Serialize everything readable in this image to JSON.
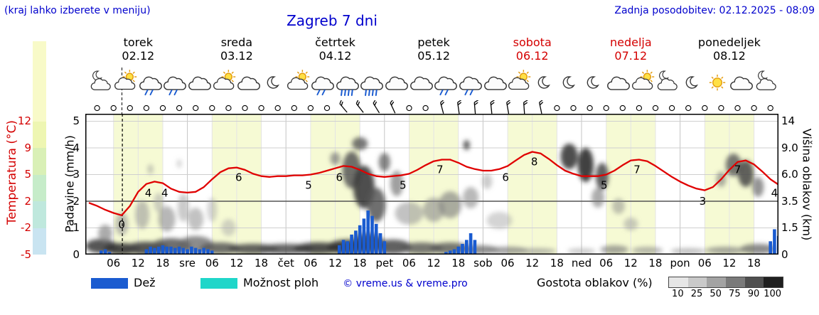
{
  "header": {
    "hint": "(kraj lahko izberete v meniju)",
    "title": "Zagreb 7 dni",
    "updated": "Zadnja posodobitev: 02.12.2025 - 08:09"
  },
  "days": [
    {
      "name": "torek",
      "date": "02.12",
      "weekend": false
    },
    {
      "name": "sreda",
      "date": "03.12",
      "weekend": false
    },
    {
      "name": "četrtek",
      "date": "04.12",
      "weekend": false
    },
    {
      "name": "petek",
      "date": "05.12",
      "weekend": false
    },
    {
      "name": "sobota",
      "date": "06.12",
      "weekend": true
    },
    {
      "name": "nedelja",
      "date": "07.12",
      "weekend": true
    },
    {
      "name": "ponedeljek",
      "date": "08.12",
      "weekend": false
    }
  ],
  "axes": {
    "temp_label": "Temperatura (°C)",
    "temp_ticks": [
      "12",
      "9",
      "5",
      "2",
      "-2",
      "-5"
    ],
    "precip_label": "Padavine (mm/h)",
    "precip_ticks": [
      "5",
      "4",
      "3",
      "2",
      "1",
      "0"
    ],
    "cloud_label": "Višina oblakov (km)",
    "cloud_ticks": [
      "14",
      "9.0",
      "6.0",
      "3.5",
      "1.5",
      "0"
    ],
    "x_ticks": [
      "06",
      "12",
      "18",
      "sre",
      "06",
      "12",
      "18",
      "čet",
      "06",
      "12",
      "18",
      "pet",
      "06",
      "12",
      "18",
      "sob",
      "06",
      "12",
      "18",
      "ned",
      "06",
      "12",
      "18",
      "pon",
      "06",
      "12",
      "18"
    ]
  },
  "legend": {
    "rain": "Dež",
    "showers": "Možnost ploh",
    "copyright": "© vreme.us & vreme.pro",
    "cloud_density": "Gostota oblakov (%)",
    "density_ticks": [
      "10",
      "25",
      "50",
      "75",
      "90",
      "100"
    ]
  },
  "colors": {
    "accent_blue": "#0000cd",
    "red": "#d40000",
    "temp_line": "#e00000",
    "rain": "#1a5bd0",
    "showers": "#1fd6c9",
    "day_band": "#f6fad4",
    "temp_scale": [
      "#f8fac8",
      "#eef6b2",
      "#d9f0b6",
      "#c6ecc9",
      "#bfe8dd",
      "#c9e4f1"
    ],
    "density_scale": [
      "#e6e6e6",
      "#c9c9c9",
      "#a3a3a3",
      "#7a7a7a",
      "#4f4f4f",
      "#1f1f1f"
    ]
  },
  "chart_data": {
    "type": "line",
    "title": "Zagreb 7 dni",
    "x_axis": {
      "unit": "hours from 02.12 00:00",
      "range": [
        0,
        168
      ],
      "tick_step_hours": 6
    },
    "now_hour": 8.15,
    "day_band": {
      "start": 6,
      "end": 18
    },
    "temperature": {
      "label": "Temperatura (°C)",
      "unit": "°C",
      "axis_ticks": [
        12,
        9,
        5,
        2,
        -2,
        -5
      ],
      "points": [
        [
          0,
          1.6
        ],
        [
          2,
          1.2
        ],
        [
          4,
          0.7
        ],
        [
          6,
          0.3
        ],
        [
          8,
          0.0
        ],
        [
          10,
          1.2
        ],
        [
          12,
          3.0
        ],
        [
          14,
          4.0
        ],
        [
          16,
          4.3
        ],
        [
          18,
          4.1
        ],
        [
          20,
          3.4
        ],
        [
          22,
          3.0
        ],
        [
          24,
          2.9
        ],
        [
          26,
          3.0
        ],
        [
          28,
          3.6
        ],
        [
          30,
          4.6
        ],
        [
          32,
          5.5
        ],
        [
          34,
          6.0
        ],
        [
          36,
          6.1
        ],
        [
          38,
          5.8
        ],
        [
          40,
          5.3
        ],
        [
          42,
          5.0
        ],
        [
          44,
          4.9
        ],
        [
          46,
          5.0
        ],
        [
          48,
          5.0
        ],
        [
          50,
          5.1
        ],
        [
          52,
          5.1
        ],
        [
          54,
          5.2
        ],
        [
          56,
          5.4
        ],
        [
          58,
          5.7
        ],
        [
          60,
          6.0
        ],
        [
          62,
          6.3
        ],
        [
          64,
          6.2
        ],
        [
          66,
          5.8
        ],
        [
          68,
          5.3
        ],
        [
          70,
          5.0
        ],
        [
          72,
          4.9
        ],
        [
          74,
          5.0
        ],
        [
          76,
          5.1
        ],
        [
          78,
          5.3
        ],
        [
          80,
          5.8
        ],
        [
          82,
          6.4
        ],
        [
          84,
          6.9
        ],
        [
          86,
          7.1
        ],
        [
          88,
          7.1
        ],
        [
          90,
          6.7
        ],
        [
          92,
          6.2
        ],
        [
          94,
          5.9
        ],
        [
          96,
          5.7
        ],
        [
          98,
          5.7
        ],
        [
          100,
          5.9
        ],
        [
          102,
          6.3
        ],
        [
          104,
          7.0
        ],
        [
          106,
          7.7
        ],
        [
          108,
          8.1
        ],
        [
          110,
          7.9
        ],
        [
          112,
          7.2
        ],
        [
          114,
          6.4
        ],
        [
          116,
          5.7
        ],
        [
          118,
          5.3
        ],
        [
          120,
          5.0
        ],
        [
          122,
          5.0
        ],
        [
          124,
          5.0
        ],
        [
          126,
          5.2
        ],
        [
          128,
          5.7
        ],
        [
          130,
          6.4
        ],
        [
          132,
          7.0
        ],
        [
          134,
          7.1
        ],
        [
          136,
          6.9
        ],
        [
          138,
          6.3
        ],
        [
          140,
          5.6
        ],
        [
          142,
          4.9
        ],
        [
          144,
          4.3
        ],
        [
          146,
          3.8
        ],
        [
          148,
          3.4
        ],
        [
          150,
          3.2
        ],
        [
          152,
          3.6
        ],
        [
          154,
          4.6
        ],
        [
          156,
          5.8
        ],
        [
          158,
          6.8
        ],
        [
          160,
          7.0
        ],
        [
          162,
          6.5
        ],
        [
          164,
          5.6
        ],
        [
          166,
          4.6
        ],
        [
          168,
          3.9
        ]
      ],
      "labels": [
        [
          8,
          0
        ],
        [
          14.5,
          4
        ],
        [
          18.5,
          4
        ],
        [
          36.5,
          6
        ],
        [
          53.5,
          5
        ],
        [
          61,
          6
        ],
        [
          76.5,
          5
        ],
        [
          85.5,
          7
        ],
        [
          101.5,
          6
        ],
        [
          108.5,
          8
        ],
        [
          125.5,
          5
        ],
        [
          133.5,
          7
        ],
        [
          149.5,
          3
        ],
        [
          158,
          7
        ],
        [
          167,
          4
        ]
      ]
    },
    "precipitation": {
      "label": "Padavine (mm/h)",
      "unit": "mm/h",
      "axis_ticks": [
        5,
        4,
        3,
        2,
        1,
        0
      ],
      "bars": [
        [
          3,
          0.15
        ],
        [
          4,
          0.2
        ],
        [
          5,
          0.1
        ],
        [
          14,
          0.2
        ],
        [
          15,
          0.3
        ],
        [
          16,
          0.25
        ],
        [
          17,
          0.3
        ],
        [
          18,
          0.35
        ],
        [
          19,
          0.3
        ],
        [
          20,
          0.3
        ],
        [
          21,
          0.25
        ],
        [
          22,
          0.3
        ],
        [
          23,
          0.25
        ],
        [
          24,
          0.2
        ],
        [
          25,
          0.3
        ],
        [
          26,
          0.25
        ],
        [
          27,
          0.2
        ],
        [
          28,
          0.25
        ],
        [
          29,
          0.2
        ],
        [
          30,
          0.15
        ],
        [
          61,
          0.35
        ],
        [
          62,
          0.55
        ],
        [
          63,
          0.5
        ],
        [
          64,
          0.75
        ],
        [
          65,
          0.9
        ],
        [
          66,
          1.1
        ],
        [
          67,
          1.35
        ],
        [
          68,
          1.65
        ],
        [
          69,
          1.45
        ],
        [
          70,
          1.15
        ],
        [
          71,
          0.8
        ],
        [
          72,
          0.5
        ],
        [
          87,
          0.1
        ],
        [
          88,
          0.15
        ],
        [
          89,
          0.2
        ],
        [
          90,
          0.3
        ],
        [
          91,
          0.4
        ],
        [
          92,
          0.55
        ],
        [
          93,
          0.8
        ],
        [
          94,
          0.55
        ],
        [
          166,
          0.5
        ],
        [
          167,
          0.95
        ],
        [
          168,
          0.7
        ]
      ]
    },
    "cloud_height_axis": {
      "label": "Višina oblakov (km)",
      "ticks": [
        "14",
        "9.0",
        "6.0",
        "3.5",
        "1.5",
        "0"
      ]
    },
    "icons": [
      "moon-cloud",
      "sun-cloud",
      "rain",
      "rain",
      "cloud",
      "sun-cloud",
      "cloud",
      "moon",
      "sun-cloud",
      "rain",
      "heavy-rain",
      "heavy-rain",
      "cloud",
      "cloud",
      "rain",
      "rain",
      "cloud",
      "sun-cloud",
      "moon",
      "moon",
      "moon",
      "cloud",
      "sun-cloud",
      "moon-cloud",
      "moon",
      "sun",
      "cloud",
      "moon-cloud"
    ],
    "wind": {
      "start_hour": 2,
      "step_hours": 4,
      "count": 42,
      "barbs": [
        [
          62,
          -40
        ],
        [
          66,
          -38
        ],
        [
          70,
          -32
        ],
        [
          74,
          -25
        ],
        [
          86,
          -15
        ],
        [
          90,
          -8
        ],
        [
          94,
          -5
        ],
        [
          98,
          -6
        ],
        [
          102,
          -10
        ],
        [
          106,
          -4
        ],
        [
          110,
          -12
        ]
      ]
    },
    "clouds": [
      [
        3,
        186,
        22,
        10,
        "#444",
        0.9
      ],
      [
        8,
        190,
        25,
        8,
        "#333",
        0.9
      ],
      [
        14,
        189,
        30,
        9,
        "#444",
        0.9
      ],
      [
        20,
        186,
        28,
        11,
        "#555",
        0.85
      ],
      [
        26,
        184,
        25,
        12,
        "#666",
        0.75
      ],
      [
        32,
        189,
        28,
        8,
        "#555",
        0.85
      ],
      [
        40,
        190,
        35,
        7,
        "#444",
        0.85
      ],
      [
        48,
        190,
        38,
        7,
        "#4a4a4a",
        0.85
      ],
      [
        56,
        189,
        35,
        8,
        "#3a3a3a",
        0.9
      ],
      [
        63,
        187,
        28,
        10,
        "#333",
        0.9
      ],
      [
        68,
        182,
        22,
        14,
        "#333",
        0.9
      ],
      [
        74,
        187,
        26,
        10,
        "#444",
        0.85
      ],
      [
        81,
        189,
        30,
        8,
        "#555",
        0.8
      ],
      [
        88,
        189,
        28,
        8,
        "#555",
        0.8
      ],
      [
        95,
        191,
        28,
        6,
        "#666",
        0.75
      ],
      [
        102,
        192,
        28,
        5,
        "#777",
        0.7
      ],
      [
        109,
        193,
        28,
        4,
        "#888",
        0.6
      ],
      [
        120,
        193,
        20,
        4,
        "#999",
        0.5
      ],
      [
        128,
        191,
        20,
        6,
        "#777",
        0.65
      ],
      [
        136,
        192,
        22,
        5,
        "#888",
        0.6
      ],
      [
        146,
        193,
        25,
        4,
        "#888",
        0.55
      ],
      [
        155,
        192,
        28,
        5,
        "#777",
        0.65
      ],
      [
        163,
        190,
        25,
        7,
        "#666",
        0.75
      ],
      [
        4,
        168,
        10,
        12,
        "#888",
        0.7
      ],
      [
        8,
        155,
        9,
        16,
        "#999",
        0.65
      ],
      [
        13,
        142,
        10,
        20,
        "#999",
        0.6
      ],
      [
        17,
        125,
        7,
        14,
        "#aaa",
        0.55
      ],
      [
        19,
        148,
        12,
        18,
        "#909090",
        0.65
      ],
      [
        23,
        132,
        8,
        20,
        "#a0a0a0",
        0.55
      ],
      [
        26,
        148,
        11,
        16,
        "#999",
        0.6
      ],
      [
        30,
        135,
        7,
        17,
        "#aaa",
        0.5
      ],
      [
        15,
        78,
        4,
        7,
        "#999",
        0.55
      ],
      [
        22,
        70,
        3.5,
        6,
        "#aaa",
        0.5
      ],
      [
        34,
        160,
        10,
        12,
        "#aaa",
        0.5
      ],
      [
        60,
        63,
        7,
        9,
        "#777",
        0.7
      ],
      [
        64,
        79,
        13,
        26,
        "#555",
        0.85
      ],
      [
        67,
        103,
        15,
        30,
        "#3c3c3c",
        0.9
      ],
      [
        70,
        128,
        13,
        24,
        "#555",
        0.85
      ],
      [
        66,
        42,
        11,
        9,
        "#555",
        0.8
      ],
      [
        72,
        68,
        8,
        13,
        "#666",
        0.8
      ],
      [
        75,
        98,
        9,
        18,
        "#777",
        0.7
      ],
      [
        78,
        140,
        20,
        16,
        "#999",
        0.6
      ],
      [
        84,
        135,
        15,
        17,
        "#888",
        0.6
      ],
      [
        88,
        128,
        16,
        19,
        "#808080",
        0.65
      ],
      [
        93,
        118,
        11,
        15,
        "#8a8a8a",
        0.6
      ],
      [
        92,
        44,
        4.5,
        7,
        "#444",
        0.85
      ],
      [
        97,
        95,
        7,
        11,
        "#999",
        0.5
      ],
      [
        100,
        150,
        18,
        12,
        "#aaa",
        0.5
      ],
      [
        117,
        60,
        12,
        18,
        "#3a3a3a",
        0.9
      ],
      [
        121,
        72,
        11,
        24,
        "#2b2b2b",
        0.9
      ],
      [
        125,
        88,
        9,
        19,
        "#444",
        0.85
      ],
      [
        124,
        118,
        9,
        14,
        "#777",
        0.6
      ],
      [
        129,
        130,
        9,
        11,
        "#888",
        0.5
      ],
      [
        132,
        155,
        10,
        9,
        "#999",
        0.5
      ],
      [
        154,
        92,
        7,
        11,
        "#777",
        0.6
      ],
      [
        157,
        72,
        11,
        16,
        "#555",
        0.8
      ],
      [
        160,
        84,
        11,
        19,
        "#474747",
        0.85
      ],
      [
        163,
        103,
        8,
        14,
        "#666",
        0.7
      ]
    ]
  }
}
